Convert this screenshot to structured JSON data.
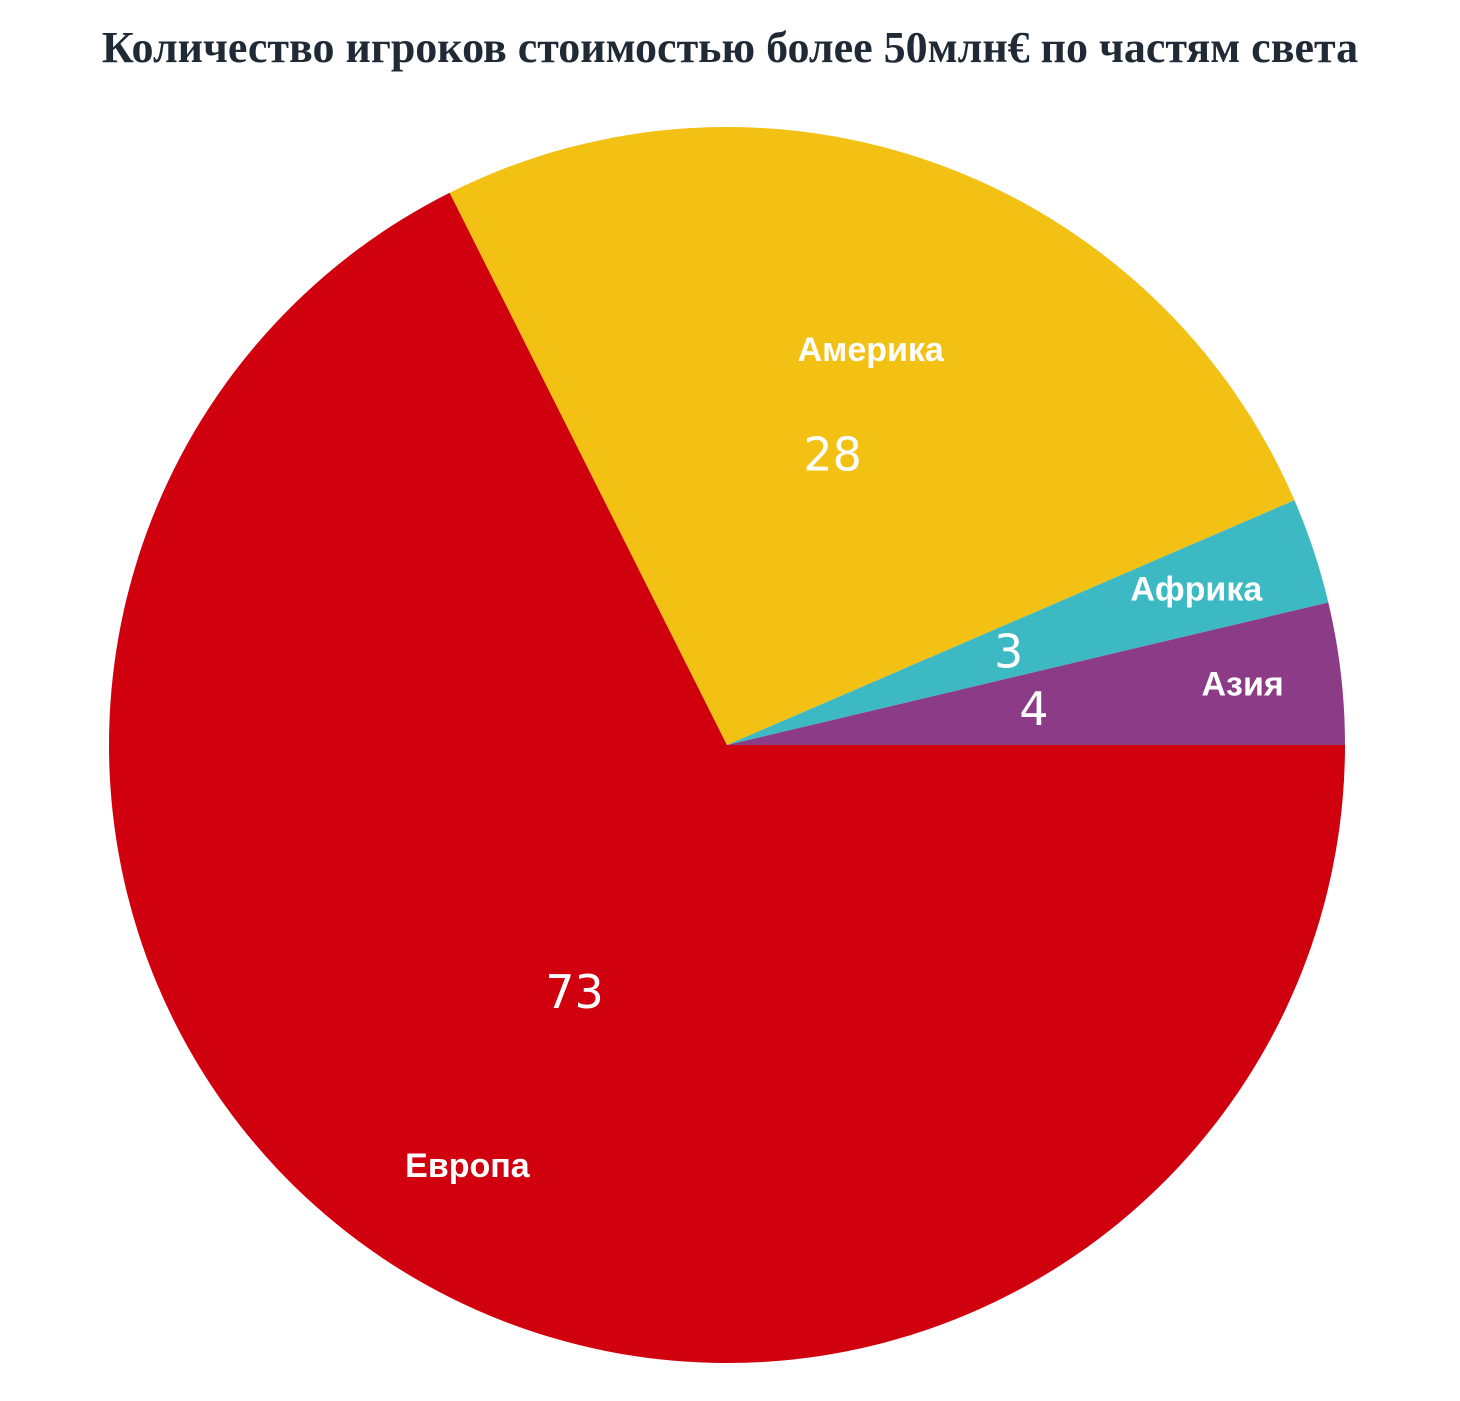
{
  "chart_data": {
    "type": "pie",
    "title": "Количество игроков стоимостью более 50млн€ по частям света",
    "slices": [
      {
        "label": "Европа",
        "value": 73,
        "color": "#d0000f"
      },
      {
        "label": "Америка",
        "value": 28,
        "color": "#f3c114"
      },
      {
        "label": "Африка",
        "value": 3,
        "color": "#3cb9c2"
      },
      {
        "label": "Азия",
        "value": 4,
        "color": "#8c3c87"
      }
    ]
  }
}
